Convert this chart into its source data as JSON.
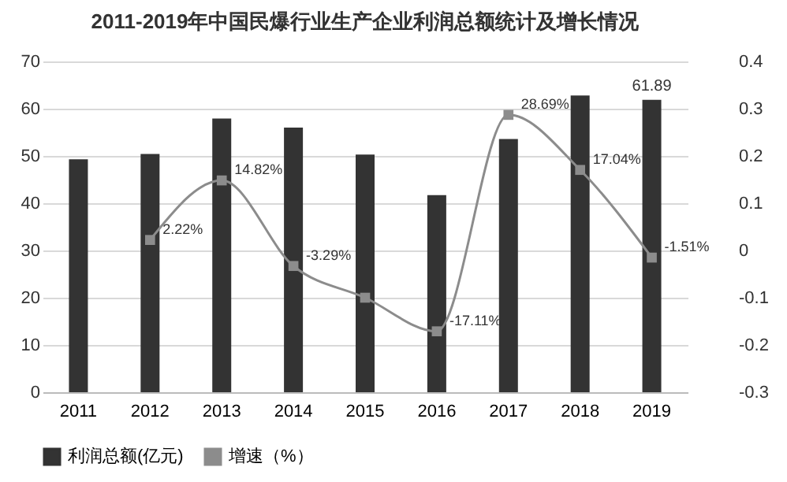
{
  "chart_data": {
    "type": "bar",
    "title": "2011-2019年中国民爆行业生产企业利润总额统计及增长情况",
    "categories": [
      "2011",
      "2012",
      "2013",
      "2014",
      "2015",
      "2016",
      "2017",
      "2018",
      "2019"
    ],
    "series": [
      {
        "name": "利润总额(亿元)",
        "color": "#333333",
        "values": [
          49.3,
          50.4,
          57.9,
          56.0,
          50.3,
          41.7,
          53.6,
          62.8,
          61.89
        ],
        "value_labels": [
          null,
          null,
          null,
          null,
          null,
          null,
          null,
          null,
          "61.89"
        ]
      },
      {
        "name": "增速（%）",
        "type": "line",
        "axis": "y2",
        "color": "#8c8c8c",
        "marker": "square",
        "values": [
          null,
          0.0222,
          0.1482,
          -0.0329,
          -0.1,
          -0.1711,
          0.2869,
          0.1704,
          -0.0151
        ],
        "value_labels": [
          null,
          "2.22%",
          "14.82%",
          "-3.29%",
          null,
          "-17.11%",
          "28.69%",
          "17.04%",
          "-1.51%"
        ]
      }
    ],
    "ylim": [
      0,
      70
    ],
    "yticks": [
      0,
      10,
      20,
      30,
      40,
      50,
      60,
      70
    ],
    "y2lim": [
      -0.3,
      0.4
    ],
    "y2ticks": [
      -0.3,
      -0.2,
      -0.1,
      0,
      0.1,
      0.2,
      0.3,
      0.4
    ],
    "grid": "y",
    "legend": "bottom"
  }
}
